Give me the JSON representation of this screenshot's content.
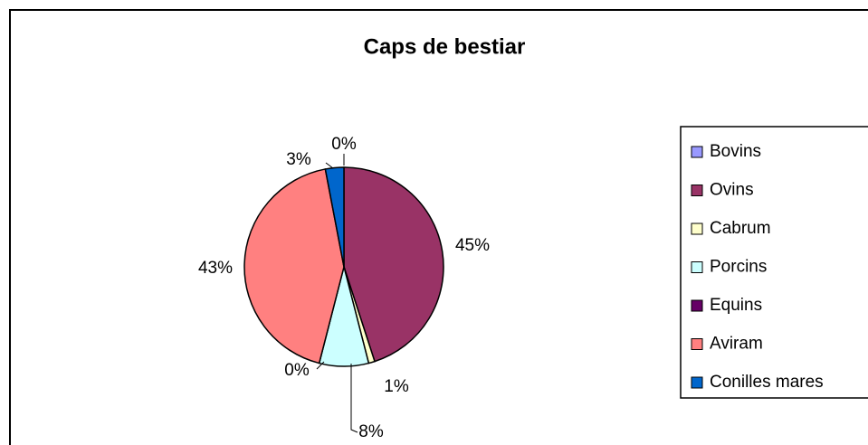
{
  "chart_data": {
    "type": "pie",
    "title": "Caps de bestiar",
    "categories": [
      "Bovins",
      "Ovins",
      "Cabrum",
      "Porcins",
      "Equins",
      "Aviram",
      "Conilles mares"
    ],
    "values": [
      0,
      45,
      1,
      8,
      0,
      43,
      3
    ],
    "value_labels": [
      "0%",
      "45%",
      "1%",
      "8%",
      "0%",
      "43%",
      "3%"
    ],
    "colors": [
      "#9999ff",
      "#993366",
      "#ffffcc",
      "#ccffff",
      "#660066",
      "#ff8080",
      "#0066cc"
    ],
    "legend": "right"
  }
}
